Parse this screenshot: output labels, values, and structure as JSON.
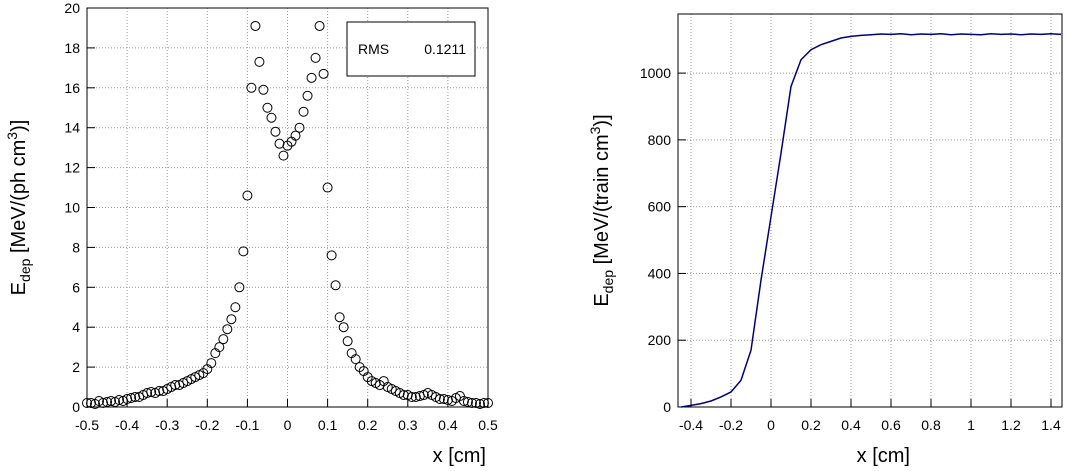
{
  "chart_data": [
    {
      "type": "scatter",
      "xlabel": "x [cm]",
      "ylabel": {
        "main": "E",
        "sub": "dep",
        "text": " [MeV/(ph cm",
        "sup": "3",
        "end": ")]"
      },
      "stats": {
        "name": "RMS",
        "value": "0.1211"
      },
      "x": [
        -0.5,
        -0.49,
        -0.48,
        -0.47,
        -0.46,
        -0.45,
        -0.44,
        -0.43,
        -0.42,
        -0.41,
        -0.4,
        -0.39,
        -0.38,
        -0.37,
        -0.36,
        -0.35,
        -0.34,
        -0.33,
        -0.32,
        -0.31,
        -0.3,
        -0.29,
        -0.28,
        -0.27,
        -0.26,
        -0.25,
        -0.24,
        -0.23,
        -0.22,
        -0.21,
        -0.2,
        -0.19,
        -0.18,
        -0.17,
        -0.16,
        -0.15,
        -0.14,
        -0.13,
        -0.12,
        -0.11,
        -0.1,
        -0.09,
        -0.08,
        -0.07,
        -0.06,
        -0.05,
        -0.04,
        -0.03,
        -0.02,
        -0.01,
        0,
        0.01,
        0.02,
        0.03,
        0.04,
        0.05,
        0.06,
        0.07,
        0.08,
        0.09,
        0.1,
        0.11,
        0.12,
        0.13,
        0.14,
        0.15,
        0.16,
        0.17,
        0.18,
        0.19,
        0.2,
        0.21,
        0.22,
        0.23,
        0.24,
        0.25,
        0.26,
        0.27,
        0.28,
        0.29,
        0.3,
        0.31,
        0.32,
        0.33,
        0.34,
        0.35,
        0.36,
        0.37,
        0.38,
        0.39,
        0.4,
        0.41,
        0.42,
        0.43,
        0.44,
        0.45,
        0.46,
        0.47,
        0.48,
        0.49,
        0.5
      ],
      "values": [
        0.2,
        0.2,
        0.15,
        0.3,
        0.2,
        0.25,
        0.3,
        0.25,
        0.35,
        0.3,
        0.4,
        0.45,
        0.5,
        0.5,
        0.6,
        0.7,
        0.75,
        0.7,
        0.8,
        0.8,
        0.9,
        1.0,
        1.1,
        1.1,
        1.2,
        1.3,
        1.4,
        1.5,
        1.6,
        1.7,
        1.9,
        2.2,
        2.7,
        3.0,
        3.4,
        3.9,
        4.4,
        5.0,
        6.0,
        7.8,
        10.6,
        16.0,
        19.1,
        17.3,
        15.9,
        15.0,
        14.5,
        13.8,
        13.2,
        12.6,
        13.1,
        13.3,
        13.6,
        14.0,
        14.8,
        15.6,
        16.5,
        17.5,
        19.1,
        16.7,
        11.0,
        7.6,
        6.1,
        4.5,
        4.0,
        3.3,
        2.7,
        2.4,
        2.0,
        1.8,
        1.5,
        1.3,
        1.2,
        1.1,
        1.3,
        1.0,
        0.9,
        0.8,
        0.7,
        0.6,
        0.6,
        0.5,
        0.5,
        0.55,
        0.6,
        0.7,
        0.6,
        0.5,
        0.4,
        0.4,
        0.35,
        0.3,
        0.45,
        0.55,
        0.3,
        0.25,
        0.2,
        0.2,
        0.15,
        0.2,
        0.2
      ],
      "color": "#000000",
      "xlim": [
        -0.5,
        0.5
      ],
      "ylim": [
        0,
        20
      ],
      "xticks": [
        -0.5,
        -0.4,
        -0.3,
        -0.2,
        -0.1,
        0,
        0.1,
        0.2,
        0.3,
        0.4,
        0.5
      ],
      "yticks": [
        0,
        2,
        4,
        6,
        8,
        10,
        12,
        14,
        16,
        18,
        20
      ],
      "grid": true
    },
    {
      "type": "line",
      "xlabel": "x [cm]",
      "ylabel": {
        "main": "E",
        "sub": "dep",
        "text": " [MeV/(train cm",
        "sup": "3",
        "end": ")]"
      },
      "x": [
        -0.45,
        -0.4,
        -0.35,
        -0.3,
        -0.25,
        -0.2,
        -0.15,
        -0.1,
        -0.05,
        0,
        0.05,
        0.1,
        0.15,
        0.2,
        0.25,
        0.3,
        0.35,
        0.4,
        0.45,
        0.5,
        0.55,
        0.6,
        0.65,
        0.7,
        0.75,
        0.8,
        0.85,
        0.9,
        0.95,
        1,
        1.05,
        1.1,
        1.15,
        1.2,
        1.25,
        1.3,
        1.35,
        1.4,
        1.45
      ],
      "values": [
        0,
        5,
        10,
        18,
        30,
        45,
        80,
        170,
        380,
        570,
        760,
        960,
        1040,
        1070,
        1085,
        1095,
        1105,
        1110,
        1113,
        1115,
        1117,
        1116,
        1118,
        1115,
        1117,
        1116,
        1118,
        1115,
        1117,
        1116,
        1115,
        1118,
        1116,
        1117,
        1115,
        1117,
        1116,
        1118,
        1116
      ],
      "color": "#000080",
      "xlim": [
        -0.465,
        1.455
      ],
      "ylim": [
        0,
        1177
      ],
      "xticks": [
        -0.4,
        -0.2,
        0,
        0.2,
        0.4,
        0.6,
        0.8,
        1,
        1.2,
        1.4
      ],
      "yticks": [
        0,
        200,
        400,
        600,
        800,
        1000
      ],
      "grid": true
    }
  ]
}
